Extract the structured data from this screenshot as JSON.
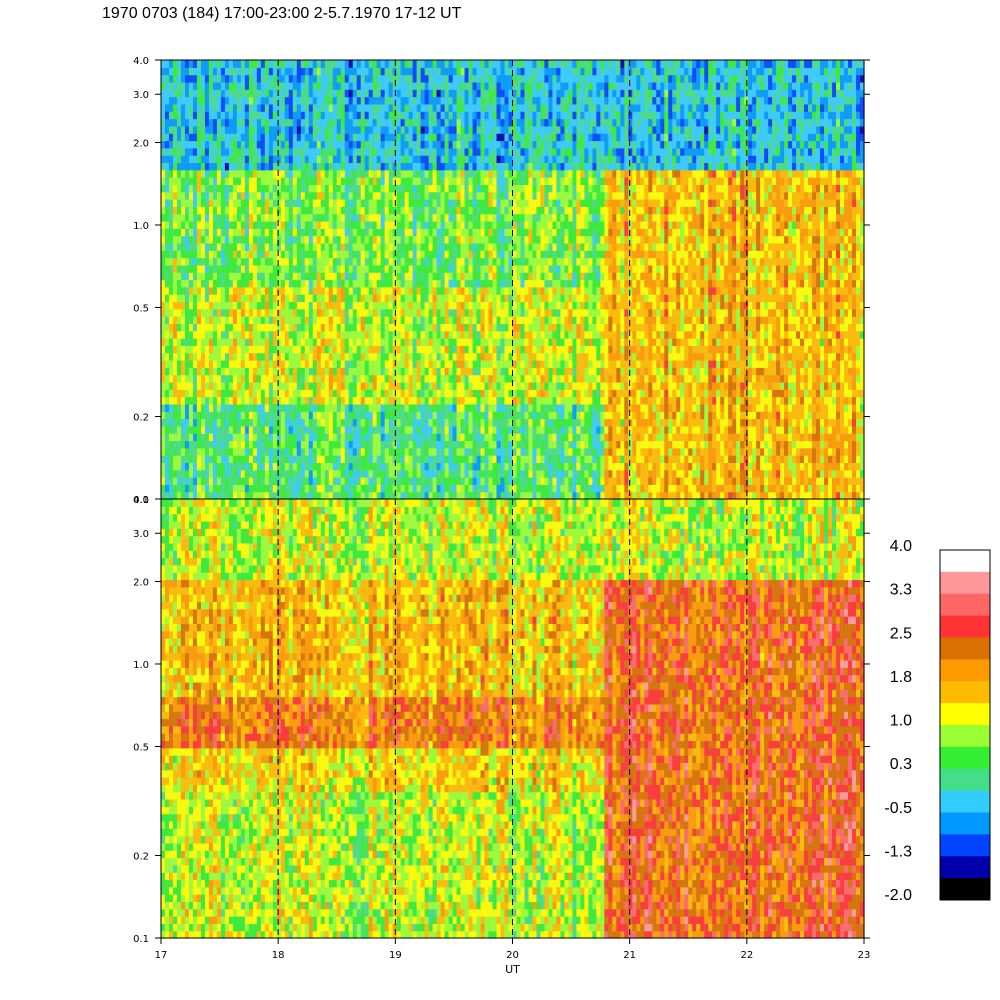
{
  "title": "1970 0703 (184) 17:00-23:00 2-5.7.1970  17-12 UT",
  "chart_data": {
    "type": "heatmap",
    "title": "1970 0703 (184) 17:00-23:00 2-5.7.1970  17-12 UT",
    "xlabel": "UT",
    "ylabel": "",
    "x_ticks": [
      "17",
      "18",
      "19",
      "20",
      "21",
      "22",
      "23"
    ],
    "xlim": [
      17,
      23
    ],
    "y_ticks": [
      "0.1",
      "0.2",
      "0.5",
      "1.0",
      "2.0",
      "3.0",
      "4.0"
    ],
    "y_tick_values": [
      0.1,
      0.2,
      0.5,
      1.0,
      2.0,
      3.0,
      4.0
    ],
    "ylim": [
      0.1,
      4.0
    ],
    "y_scale": "log",
    "dashed_vlines": [
      17,
      18,
      19,
      20,
      21,
      22
    ],
    "colorbar": {
      "labels": [
        "4.0",
        "3.3",
        "2.5",
        "1.8",
        "1.0",
        "0.3",
        "-0.5",
        "-1.3",
        "-2.0"
      ],
      "colors": [
        "#ffffff",
        "#ff9999",
        "#ff6666",
        "#ff3333",
        "#d97000",
        "#ff9900",
        "#ffbb00",
        "#ffff00",
        "#99ff33",
        "#33ee33",
        "#44dd88",
        "#33ccff",
        "#0099ff",
        "#0044ff",
        "#0000aa",
        "#000000"
      ]
    },
    "panels": [
      {
        "name": "upper",
        "description_bands": [
          {
            "x": [
              17,
              20.8
            ],
            "y": [
              0.1,
              0.22
            ],
            "level": 0.3
          },
          {
            "x": [
              17,
              20.8
            ],
            "y": [
              0.22,
              0.6
            ],
            "level": 1.0
          },
          {
            "x": [
              17,
              20.8
            ],
            "y": [
              0.6,
              1.6
            ],
            "level": 0.6
          },
          {
            "x": [
              17,
              23
            ],
            "y": [
              1.6,
              4.0
            ],
            "level": -0.3
          },
          {
            "x": [
              20.8,
              23
            ],
            "y": [
              0.1,
              1.6
            ],
            "level": 1.6
          }
        ]
      },
      {
        "name": "lower",
        "description_bands": [
          {
            "x": [
              17,
              20.8
            ],
            "y": [
              0.1,
              0.35
            ],
            "level": 1.0
          },
          {
            "x": [
              17,
              20.8
            ],
            "y": [
              0.35,
              0.5
            ],
            "level": 1.4
          },
          {
            "x": [
              17,
              20.8
            ],
            "y": [
              0.5,
              0.75
            ],
            "level": 2.2
          },
          {
            "x": [
              17,
              20.8
            ],
            "y": [
              0.75,
              2.0
            ],
            "level": 1.6
          },
          {
            "x": [
              17,
              23
            ],
            "y": [
              2.0,
              4.0
            ],
            "level": 1.0
          },
          {
            "x": [
              20.8,
              23
            ],
            "y": [
              0.1,
              2.0
            ],
            "level": 2.4
          }
        ]
      }
    ]
  }
}
